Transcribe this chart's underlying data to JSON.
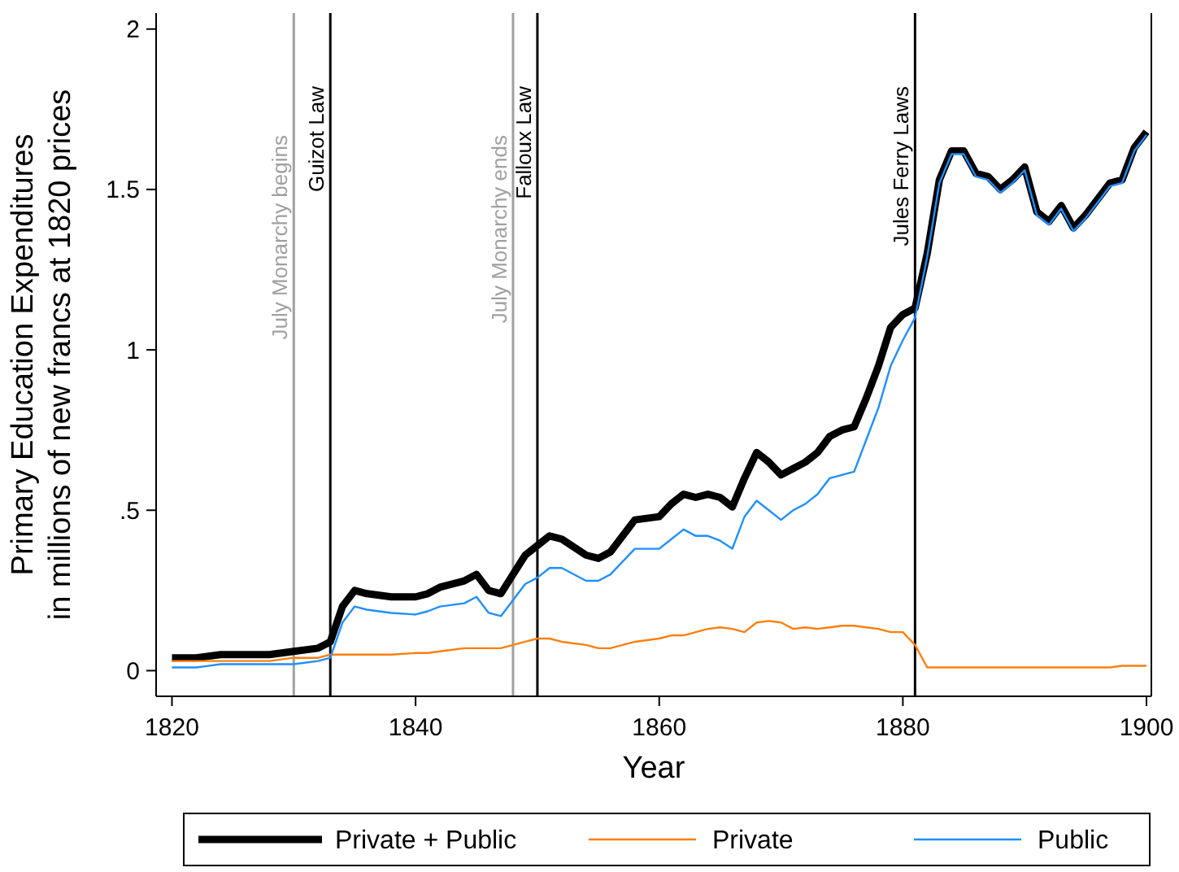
{
  "chart_data": {
    "type": "line",
    "xlabel": "Year",
    "ylabel": "Primary Education Expenditures\nin millions of new francs at 1820 prices",
    "x": [
      1820,
      1822,
      1824,
      1826,
      1828,
      1830,
      1832,
      1833,
      1834,
      1835,
      1836,
      1838,
      1840,
      1841,
      1842,
      1844,
      1845,
      1846,
      1847,
      1848,
      1849,
      1850,
      1851,
      1852,
      1854,
      1855,
      1856,
      1857,
      1858,
      1860,
      1861,
      1862,
      1863,
      1864,
      1865,
      1866,
      1867,
      1868,
      1869,
      1870,
      1871,
      1872,
      1873,
      1874,
      1875,
      1876,
      1877,
      1878,
      1879,
      1880,
      1881,
      1882,
      1883,
      1884,
      1885,
      1886,
      1887,
      1888,
      1889,
      1890,
      1891,
      1892,
      1893,
      1894,
      1895,
      1896,
      1897,
      1898,
      1899,
      1900
    ],
    "series": [
      {
        "name": "Private + Public",
        "color": "#000000",
        "values": [
          0.04,
          0.04,
          0.05,
          0.05,
          0.05,
          0.06,
          0.07,
          0.09,
          0.2,
          0.25,
          0.24,
          0.23,
          0.23,
          0.24,
          0.26,
          0.28,
          0.3,
          0.25,
          0.24,
          0.3,
          0.36,
          0.39,
          0.42,
          0.41,
          0.36,
          0.35,
          0.37,
          0.42,
          0.47,
          0.48,
          0.52,
          0.55,
          0.54,
          0.55,
          0.54,
          0.51,
          0.6,
          0.68,
          0.65,
          0.61,
          0.63,
          0.65,
          0.68,
          0.73,
          0.75,
          0.76,
          0.85,
          0.95,
          1.07,
          1.11,
          1.13,
          1.3,
          1.53,
          1.62,
          1.62,
          1.55,
          1.54,
          1.5,
          1.53,
          1.57,
          1.43,
          1.4,
          1.45,
          1.38,
          1.42,
          1.47,
          1.52,
          1.53,
          1.63,
          1.68
        ]
      },
      {
        "name": "Private",
        "color": "#ff7f0e",
        "values": [
          0.03,
          0.03,
          0.03,
          0.03,
          0.03,
          0.04,
          0.04,
          0.05,
          0.05,
          0.05,
          0.05,
          0.05,
          0.055,
          0.055,
          0.06,
          0.07,
          0.07,
          0.07,
          0.07,
          0.08,
          0.09,
          0.1,
          0.1,
          0.09,
          0.08,
          0.07,
          0.07,
          0.08,
          0.09,
          0.1,
          0.11,
          0.11,
          0.12,
          0.13,
          0.135,
          0.13,
          0.12,
          0.15,
          0.155,
          0.15,
          0.13,
          0.135,
          0.13,
          0.135,
          0.14,
          0.14,
          0.135,
          0.13,
          0.12,
          0.12,
          0.08,
          0.01,
          0.01,
          0.01,
          0.01,
          0.01,
          0.01,
          0.01,
          0.01,
          0.01,
          0.01,
          0.01,
          0.01,
          0.01,
          0.01,
          0.01,
          0.01,
          0.015,
          0.015,
          0.015
        ]
      },
      {
        "name": "Public",
        "color": "#1e90ff",
        "values": [
          0.01,
          0.01,
          0.02,
          0.02,
          0.02,
          0.02,
          0.03,
          0.04,
          0.15,
          0.2,
          0.19,
          0.18,
          0.175,
          0.185,
          0.2,
          0.21,
          0.23,
          0.18,
          0.17,
          0.22,
          0.27,
          0.29,
          0.32,
          0.32,
          0.28,
          0.28,
          0.3,
          0.34,
          0.38,
          0.38,
          0.41,
          0.44,
          0.42,
          0.42,
          0.405,
          0.38,
          0.48,
          0.53,
          0.5,
          0.47,
          0.5,
          0.52,
          0.55,
          0.6,
          0.61,
          0.62,
          0.72,
          0.82,
          0.95,
          1.03,
          1.1,
          1.29,
          1.52,
          1.61,
          1.61,
          1.54,
          1.53,
          1.49,
          1.52,
          1.56,
          1.42,
          1.39,
          1.44,
          1.37,
          1.41,
          1.46,
          1.51,
          1.52,
          1.62,
          1.67
        ]
      }
    ],
    "ref_lines": [
      {
        "axis": "x",
        "value": 1830,
        "label": "July Monarchy begins",
        "color": "#a0a0a0"
      },
      {
        "axis": "x",
        "value": 1833,
        "label": "Guizot Law",
        "color": "#000000"
      },
      {
        "axis": "x",
        "value": 1848,
        "label": "July Monarchy ends",
        "color": "#a0a0a0"
      },
      {
        "axis": "x",
        "value": 1850,
        "label": "Falloux Law",
        "color": "#000000"
      },
      {
        "axis": "x",
        "value": 1881,
        "label": "Jules Ferry Laws",
        "color": "#000000"
      }
    ],
    "xlim": [
      1818.7,
      1900.4
    ],
    "xticks": [
      1820,
      1840,
      1860,
      1880,
      1900
    ],
    "ylim": [
      -0.08,
      2.05
    ],
    "yticks": [
      0,
      {
        "value": 0.5,
        "label": ".5"
      },
      1,
      1.5,
      2
    ],
    "grid": false,
    "legend": "bottom"
  }
}
